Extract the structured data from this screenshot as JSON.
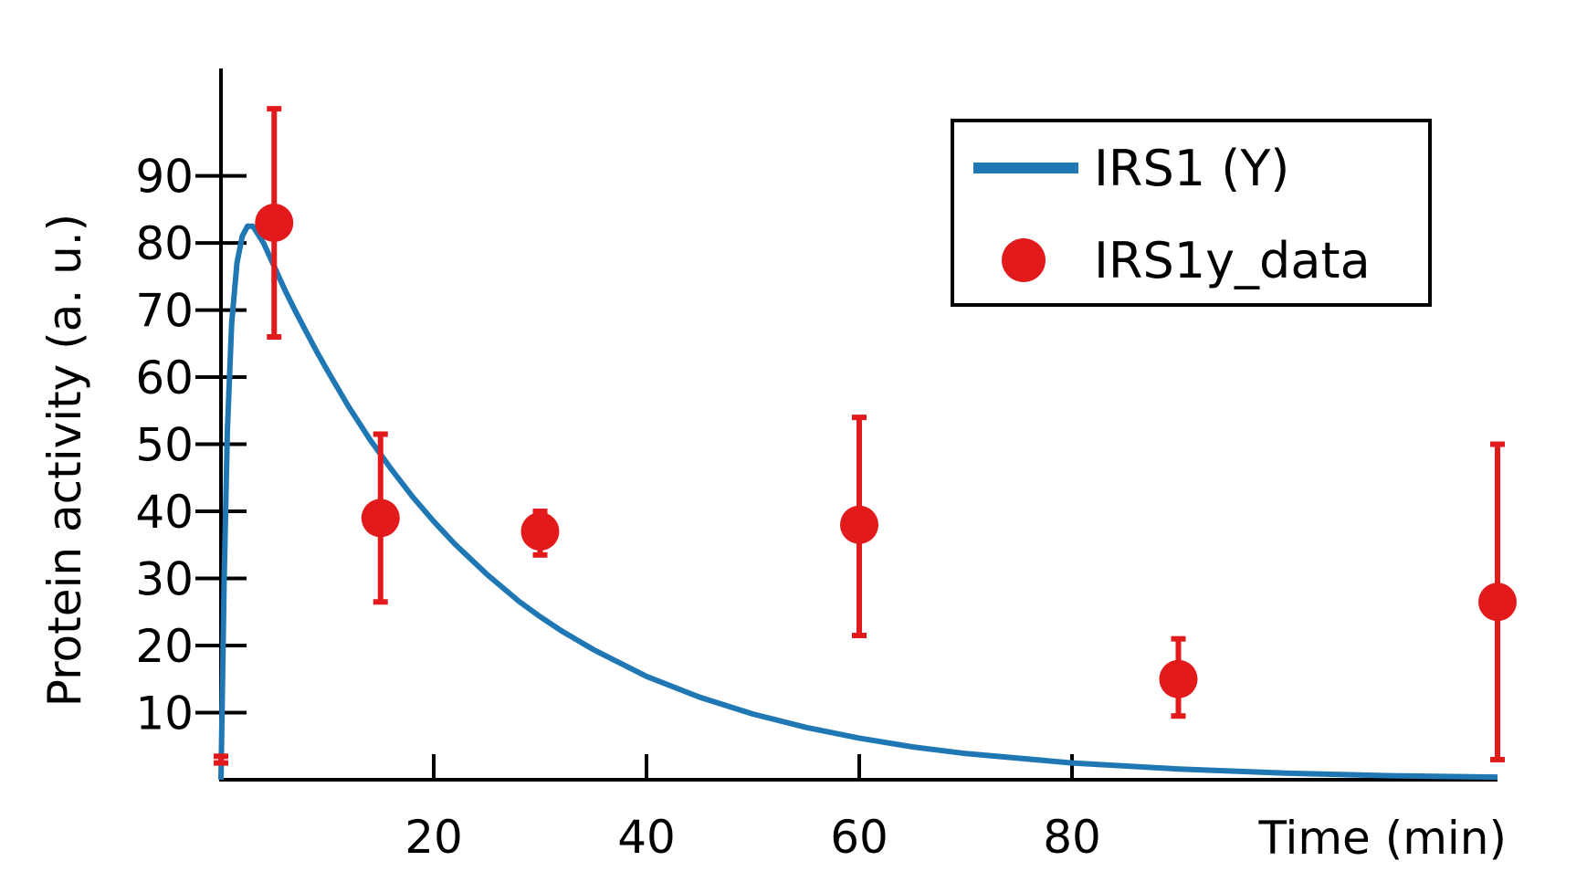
{
  "chart_data": {
    "type": "line",
    "xlabel": "Time (min)",
    "ylabel": "Protein activity (a. u.)",
    "xlim": [
      0,
      120
    ],
    "ylim": [
      0,
      106
    ],
    "x_ticks": [
      20,
      40,
      60,
      80
    ],
    "y_ticks": [
      10,
      20,
      30,
      40,
      50,
      60,
      70,
      80,
      90
    ],
    "grid": false,
    "legend_position": "top-right",
    "colors": {
      "model": "#1f77b4",
      "data": "#e31a1c",
      "axes": "#000000"
    },
    "series": [
      {
        "name": "IRS1 (Y)",
        "kind": "line",
        "x": [
          0,
          0.3,
          0.6,
          1.0,
          1.5,
          2.0,
          2.5,
          3.0,
          4,
          5,
          6,
          7,
          8,
          9,
          10,
          12,
          14,
          16,
          18,
          20,
          22,
          25,
          28,
          30,
          32,
          35,
          40,
          45,
          50,
          55,
          60,
          65,
          70,
          80,
          90,
          100,
          110,
          120
        ],
        "y": [
          0,
          30,
          52,
          68,
          77,
          81,
          82.5,
          82.5,
          80,
          76.5,
          73,
          69.8,
          66.8,
          63.8,
          61,
          55.6,
          50.7,
          46.3,
          42.2,
          38.5,
          35.1,
          30.6,
          26.6,
          24.3,
          22.2,
          19.4,
          15.4,
          12.3,
          9.8,
          7.8,
          6.2,
          4.9,
          3.9,
          2.5,
          1.6,
          1.0,
          0.6,
          0.4
        ]
      },
      {
        "name": "IRS1y_data",
        "kind": "errorbar",
        "x": [
          0,
          5,
          15,
          30,
          60,
          90,
          120
        ],
        "y": [
          null,
          83,
          39,
          37,
          38,
          15,
          26.5
        ],
        "yerr_low": [
          2.5,
          66,
          26.5,
          33.5,
          21.5,
          9.5,
          3
        ],
        "yerr_high": [
          3.5,
          100,
          51.5,
          40,
          54,
          21,
          50
        ]
      }
    ]
  }
}
